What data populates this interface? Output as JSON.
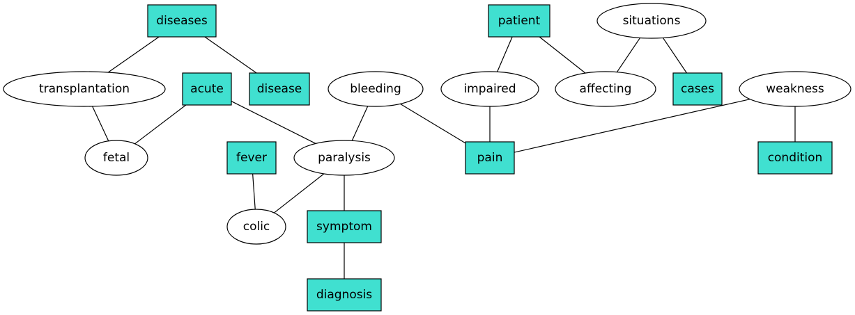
{
  "colors": {
    "box_fill": "#40e0d0",
    "ellipse_fill": "#ffffff",
    "stroke": "#000000"
  },
  "nodes": {
    "diseases": "diseases",
    "transplantation": "transplantation",
    "acute": "acute",
    "disease": "disease",
    "fetal": "fetal",
    "fever": "fever",
    "paralysis": "paralysis",
    "colic": "colic",
    "symptom": "symptom",
    "diagnosis": "diagnosis",
    "bleeding": "bleeding",
    "pain": "pain",
    "patient": "patient",
    "impaired": "impaired",
    "affecting": "affecting",
    "situations": "situations",
    "cases": "cases",
    "weakness": "weakness",
    "condition": "condition"
  },
  "edges": [
    [
      "diseases",
      "transplantation"
    ],
    [
      "diseases",
      "disease"
    ],
    [
      "transplantation",
      "fetal"
    ],
    [
      "acute",
      "fetal"
    ],
    [
      "acute",
      "paralysis"
    ],
    [
      "fever",
      "colic"
    ],
    [
      "paralysis",
      "colic"
    ],
    [
      "paralysis",
      "symptom"
    ],
    [
      "bleeding",
      "paralysis"
    ],
    [
      "bleeding",
      "pain"
    ],
    [
      "symptom",
      "diagnosis"
    ],
    [
      "patient",
      "impaired"
    ],
    [
      "patient",
      "affecting"
    ],
    [
      "situations",
      "affecting"
    ],
    [
      "situations",
      "cases"
    ],
    [
      "impaired",
      "pain"
    ],
    [
      "weakness",
      "pain"
    ],
    [
      "weakness",
      "condition"
    ]
  ]
}
